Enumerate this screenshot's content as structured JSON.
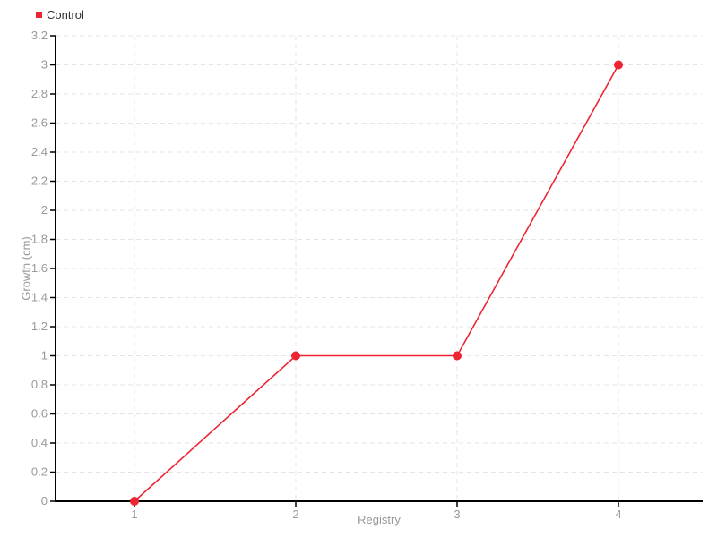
{
  "chart_data": {
    "type": "line",
    "title": "",
    "xlabel": "Registry",
    "ylabel": "Growth (cm)",
    "x": [
      1,
      2,
      3,
      4
    ],
    "x_tick_values": [
      1,
      2,
      3,
      4
    ],
    "x_tick_labels": [
      "1",
      "2",
      "3",
      "4"
    ],
    "y_tick_values": [
      0,
      0.2,
      0.4,
      0.6,
      0.8,
      1,
      1.2,
      1.4,
      1.6,
      1.8,
      2,
      2.2,
      2.4,
      2.6,
      2.8,
      3,
      3.2
    ],
    "y_tick_labels": [
      "0",
      "0.2",
      "0.4",
      "0.6",
      "0.8",
      "1",
      "1.2",
      "1.4",
      "1.6",
      "1.8",
      "2",
      "2.2",
      "2.4",
      "2.6",
      "2.8",
      "3",
      "3.2"
    ],
    "xlim": [
      1,
      4
    ],
    "ylim": [
      0,
      3.2
    ],
    "grid": "dashed",
    "legend_position": "top-left",
    "series": [
      {
        "name": "Control",
        "values": [
          0,
          1,
          1,
          3
        ],
        "color": "#ed2533",
        "marker": "circle"
      }
    ]
  },
  "colors": {
    "series_red": "#ed2533",
    "grid": "#e4e4e4",
    "axis": "#000000",
    "tick_label": "#999999",
    "axis_title": "#999999",
    "legend_text": "#333333",
    "background": "#ffffff"
  }
}
